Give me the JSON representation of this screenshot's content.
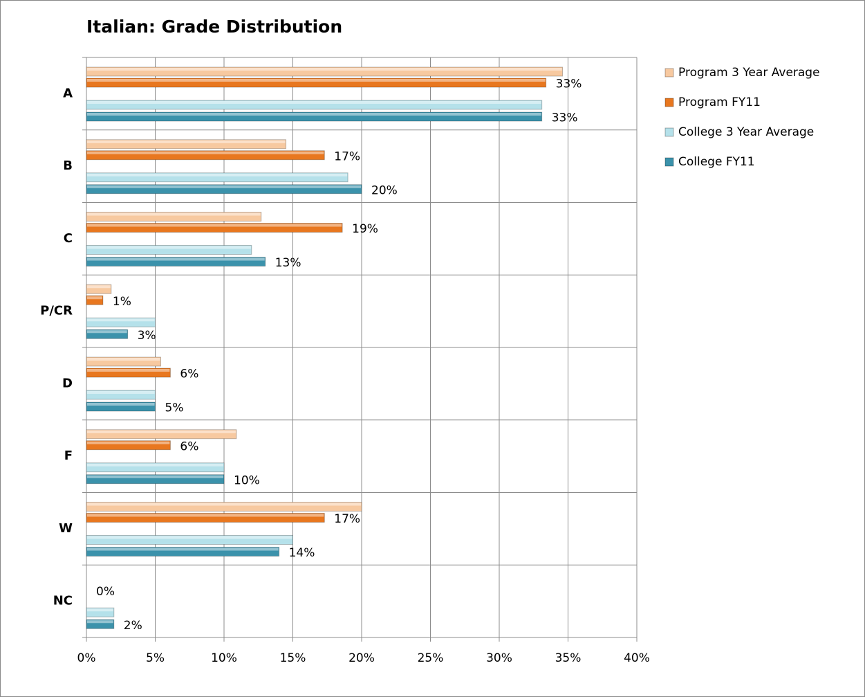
{
  "chart_data": {
    "type": "bar",
    "orientation": "horizontal",
    "title": "Italian: Grade Distribution",
    "categories": [
      "A",
      "B",
      "C",
      "P/CR",
      "D",
      "F",
      "W",
      "NC"
    ],
    "series": [
      {
        "name": "Program 3 Year Average",
        "color": "#f7c9a0",
        "values": [
          34.6,
          14.5,
          12.7,
          1.8,
          5.4,
          10.9,
          20.0,
          0
        ]
      },
      {
        "name": "Program FY11",
        "color": "#e8771f",
        "values": [
          33.4,
          17.3,
          18.6,
          1.2,
          6.1,
          6.1,
          17.3,
          0
        ],
        "value_labels": [
          "33%",
          "17%",
          "19%",
          "1%",
          "6%",
          "6%",
          "17%",
          "0%"
        ]
      },
      {
        "name": "College 3 Year Average",
        "color": "#b5e1ea",
        "values": [
          33.1,
          19.0,
          12.0,
          5.0,
          5.0,
          10.0,
          15.0,
          2.0
        ]
      },
      {
        "name": "College FY11",
        "color": "#3b92ab",
        "values": [
          33.1,
          20.0,
          13.0,
          3.0,
          5.0,
          10.0,
          14.0,
          2.0
        ],
        "value_labels": [
          "33%",
          "20%",
          "13%",
          "3%",
          "5%",
          "10%",
          "14%",
          "2%"
        ]
      }
    ],
    "xlim": [
      0,
      40
    ],
    "xticks": [
      {
        "value": 0,
        "label": "0%"
      },
      {
        "value": 5,
        "label": "5%"
      },
      {
        "value": 10,
        "label": "10%"
      },
      {
        "value": 15,
        "label": "15%"
      },
      {
        "value": 20,
        "label": "20%"
      },
      {
        "value": 25,
        "label": "25%"
      },
      {
        "value": 30,
        "label": "30%"
      },
      {
        "value": 35,
        "label": "35%"
      },
      {
        "value": 40,
        "label": "40%"
      }
    ],
    "grid": true,
    "legend": "right"
  }
}
